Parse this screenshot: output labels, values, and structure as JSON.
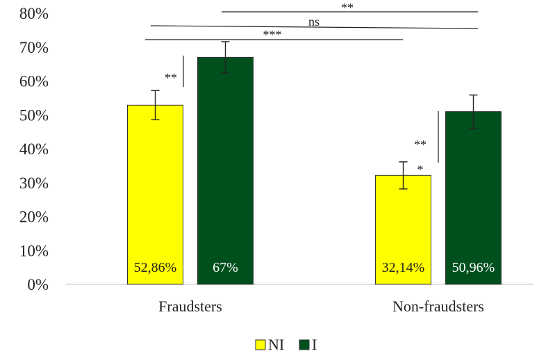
{
  "chart_data": {
    "type": "bar",
    "categories": [
      "Fraudsters",
      "Non-fraudsters"
    ],
    "series": [
      {
        "name": "NI",
        "color": "#ffff00",
        "label_color": "#222222",
        "values": [
          52.86,
          32.14
        ],
        "labels": [
          "52,86%",
          "32,14%"
        ],
        "errors": [
          4.3,
          4.0
        ]
      },
      {
        "name": "I",
        "color": "#00501e",
        "label_color": "#ffffff",
        "values": [
          67,
          50.96
        ],
        "labels": [
          "67%",
          "50,96%"
        ],
        "errors": [
          4.6,
          4.9
        ]
      }
    ],
    "ylim": [
      0,
      80
    ],
    "yticks": [
      0,
      10,
      20,
      30,
      40,
      50,
      60,
      70,
      80
    ],
    "ytick_labels": [
      "0%",
      "10%",
      "20%",
      "30%",
      "40%",
      "50%",
      "60%",
      "70%",
      "80%"
    ],
    "legend_position": "bottom",
    "grid": false,
    "significance": [
      {
        "label": "**",
        "from": "Fraudsters.NI",
        "to": "Fraudsters.I"
      },
      {
        "label": "**",
        "from": "Non-fraudsters.NI",
        "to": "Non-fraudsters.I"
      },
      {
        "label": "*",
        "marker_on": "Non-fraudsters.NI"
      },
      {
        "label": "**",
        "from": "Fraudsters.I",
        "to": "Non-fraudsters.I"
      },
      {
        "label": "ns",
        "from": "Fraudsters.NI",
        "to": "Non-fraudsters.I"
      },
      {
        "label": "***",
        "from": "Fraudsters.NI",
        "to": "Non-fraudsters.NI"
      }
    ]
  }
}
